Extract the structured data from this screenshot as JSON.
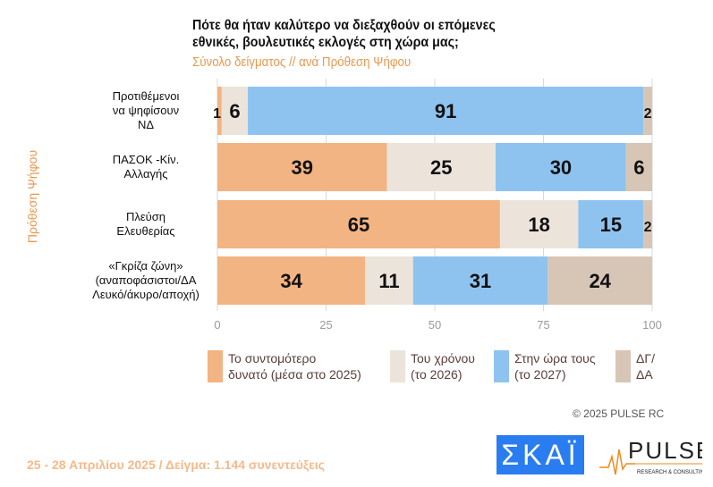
{
  "chart_data": {
    "type": "bar",
    "orientation": "horizontal-stacked",
    "title": [
      "Πότε θα ήταν καλύτερο να διεξαχθούν οι επόμενες",
      "εθνικές, βουλευτικές εκλογές στη χώρα μας;"
    ],
    "subtitle": "Σύνολο δείγματος // ανά Πρόθεση Ψήφου",
    "ylabel": "Πρόθεση Ψήφου",
    "categories": [
      [
        "Προτιθέμενοι",
        "να ψηφίσουν",
        "ΝΔ"
      ],
      [
        "ΠΑΣΟΚ -Κίν.",
        "Αλλαγής"
      ],
      [
        "Πλεύση",
        "Ελευθερίας"
      ],
      [
        "«Γκρίζα ζώνη»",
        "(αναποφάσιστοι/ΔΑ",
        "Λευκό/άκυρο/αποχή)"
      ]
    ],
    "series": [
      {
        "name": "Το συντομότερο δυνατό (μέσα στο 2025)",
        "label": [
          "Το συντομότερο",
          "δυνατό (μέσα στο 2025)"
        ],
        "color": "#f2b482",
        "values": [
          1,
          39,
          65,
          34
        ]
      },
      {
        "name": "Του χρόνου (το 2026)",
        "label": [
          "Του χρόνου",
          "(το 2026)"
        ],
        "color": "#ece4da",
        "values": [
          6,
          25,
          18,
          11
        ]
      },
      {
        "name": "Στην ώρα τους (το 2027)",
        "label": [
          "Στην ώρα τους",
          "(το 2027)"
        ],
        "color": "#8fc3ef",
        "values": [
          91,
          30,
          15,
          31
        ]
      },
      {
        "name": "ΔΓ/ΔΑ",
        "label": [
          "ΔΓ/",
          "ΔΑ"
        ],
        "color": "#d7c6b6",
        "values": [
          2,
          6,
          2,
          24
        ]
      }
    ],
    "xlim": [
      0,
      100
    ],
    "xticks": [
      "0",
      "25",
      "50",
      "75",
      "100"
    ],
    "grid": true,
    "legend": "bottom"
  },
  "copyright": "© 2025 PULSE RC",
  "footer": "25 - 28 Απριλίου 2025  /  Δείγμα:  1.144 συνεντεύξεις",
  "logos": {
    "skai": "ΣΚΑΪ",
    "pulse": "PULSE"
  }
}
